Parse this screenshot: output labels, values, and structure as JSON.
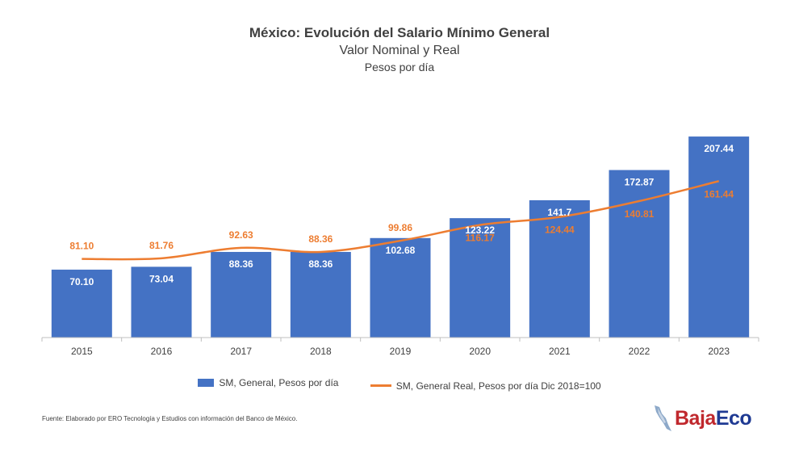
{
  "header": {
    "title": "México: Evolución del Salario Mínimo General",
    "subtitle": "Valor Nominal y Real",
    "unit": "Pesos por día"
  },
  "chart_data": {
    "type": "bar",
    "categories": [
      "2015",
      "2016",
      "2017",
      "2018",
      "2019",
      "2020",
      "2021",
      "2022",
      "2023"
    ],
    "series": [
      {
        "name": "SM, General, Pesos por día",
        "kind": "bar",
        "color": "#4472C4",
        "values": [
          70.1,
          73.04,
          88.36,
          88.36,
          102.68,
          123.22,
          141.7,
          172.87,
          207.44
        ],
        "labels": [
          "70.10",
          "73.04",
          "88.36",
          "88.36",
          "102.68",
          "123.22",
          "141.7",
          "172.87",
          "207.44"
        ]
      },
      {
        "name": "SM, General Real, Pesos por día Dic 2018=100",
        "kind": "line",
        "color": "#ED7D31",
        "values": [
          81.1,
          81.76,
          92.63,
          88.36,
          99.86,
          116.17,
          124.44,
          140.81,
          161.44
        ],
        "labels": [
          "81.10",
          "81.76",
          "92.63",
          "88.36",
          "99.86",
          "116.17",
          "124.44",
          "140.81",
          "161.44"
        ]
      }
    ],
    "ylim": [
      0,
      215
    ],
    "grid": false,
    "legend": "bottom"
  },
  "legend": {
    "bar_label": "SM, General, Pesos por día",
    "line_label": "SM, General Real, Pesos por día Dic 2018=100"
  },
  "footer": {
    "source": "Fuente: Elaborado por ERO Tecnología y Estudios con información del Banco de México."
  },
  "logo": {
    "part1": "Baja",
    "part2": "Eco"
  }
}
